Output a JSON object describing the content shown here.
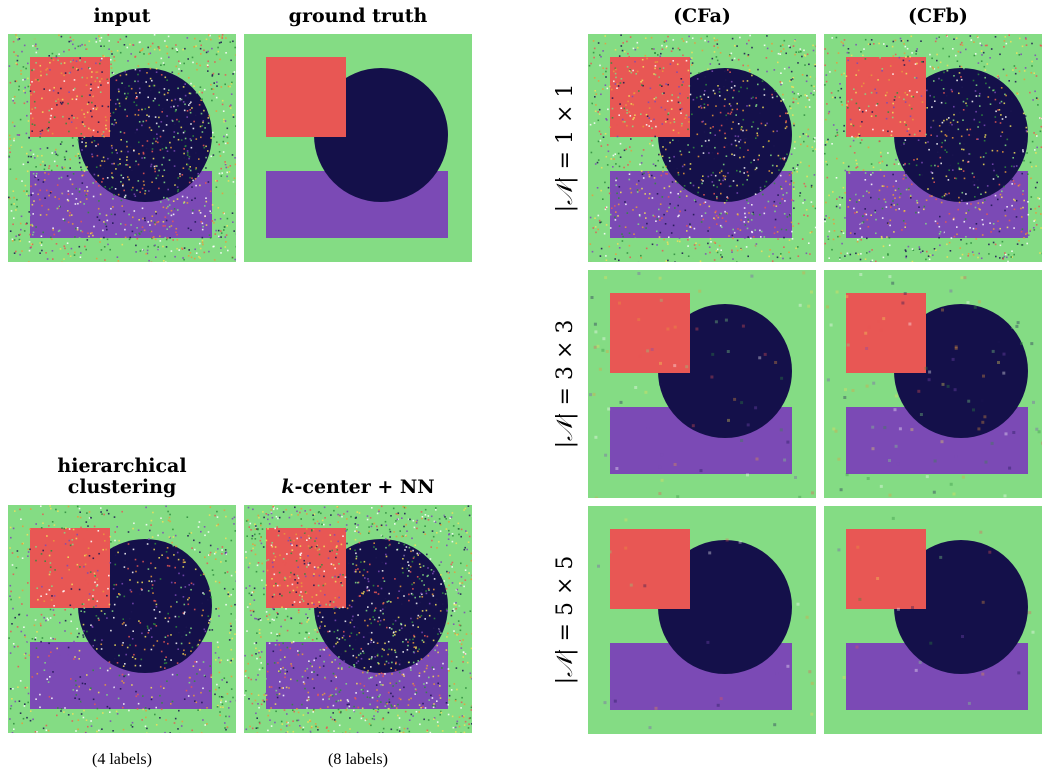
{
  "titles": {
    "input": "input",
    "ground_truth": "ground truth",
    "cfa": "(CFa)",
    "cfb": "(CFb)",
    "hier_line1": "hierarchical",
    "hier_line2": "clustering",
    "kcenter_k": "k",
    "kcenter_rest": "-center + NN"
  },
  "captions": {
    "hier": "(4 labels)",
    "kcenter": "(8 labels)"
  },
  "row_labels": [
    {
      "prefix": "|",
      "symbol": "𝒩",
      "suffix": "| = 1 × 1"
    },
    {
      "prefix": "|",
      "symbol": "𝒩",
      "suffix": "| = 3 × 3"
    },
    {
      "prefix": "|",
      "symbol": "𝒩",
      "suffix": "| = 5 × 5"
    }
  ],
  "colors": {
    "background": "#84dc84",
    "square": "#e85754",
    "circle": "#14104a",
    "rectangle": "#7b4ab5"
  },
  "noise_levels": {
    "input": 0.55,
    "ground_truth": 0,
    "hier": 0.35,
    "kcenter": 0.6,
    "cfa_1": 0.45,
    "cfb_1": 0.4,
    "cfa_3": 0.03,
    "cfb_3": 0.04,
    "cfa_5": 0.01,
    "cfb_5": 0.01
  }
}
